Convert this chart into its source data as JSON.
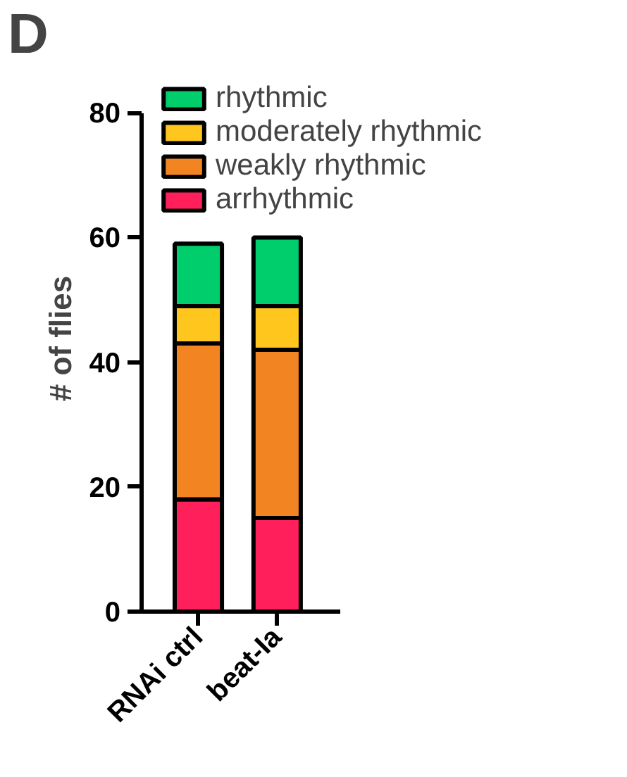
{
  "chart_data": {
    "type": "bar",
    "stacked": true,
    "categories": [
      "RNAi ctrl",
      "beat-Ia"
    ],
    "ylabel": "# of flies",
    "ylim": [
      0,
      80
    ],
    "yticks": [
      0,
      20,
      40,
      60,
      80
    ],
    "legend": "top right",
    "grid": false,
    "annotations": [
      "D"
    ],
    "series": [
      {
        "name": "arrhythmic",
        "color": "#ff1f5b",
        "values": [
          18,
          15
        ]
      },
      {
        "name": "weakly rhythmic",
        "color": "#f28522",
        "values": [
          25,
          27
        ]
      },
      {
        "name": "moderately rhythmic",
        "color": "#ffc61e",
        "values": [
          6,
          7
        ]
      },
      {
        "name": "rhythmic",
        "color": "#00cd6c",
        "values": [
          10,
          11
        ]
      }
    ]
  }
}
